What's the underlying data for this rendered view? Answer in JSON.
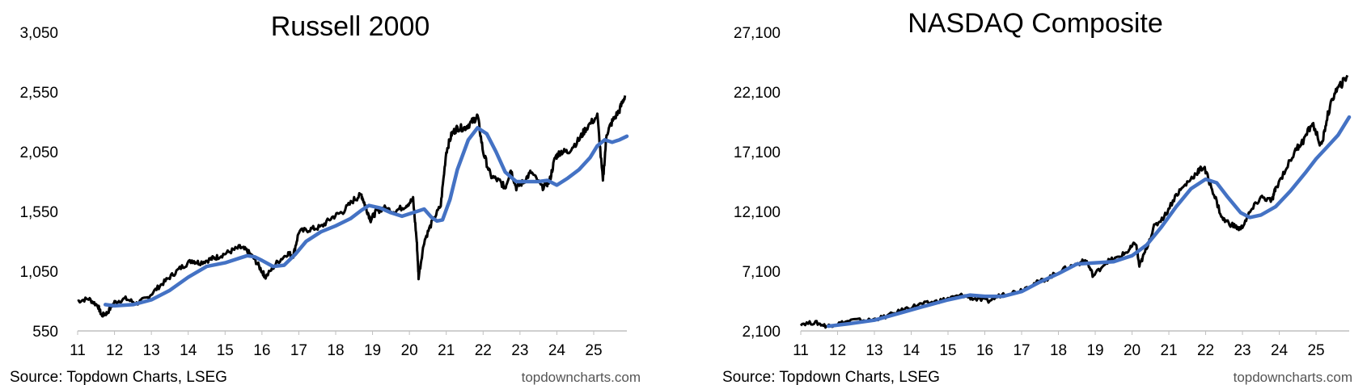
{
  "colors": {
    "price": "#000000",
    "moving_average": "#4472C4",
    "axis": "#bfbfbf"
  },
  "chart_data": [
    {
      "type": "line",
      "title": "Russell 2000",
      "x_tick_labels": [
        "11",
        "12",
        "13",
        "14",
        "15",
        "16",
        "17",
        "18",
        "19",
        "20",
        "21",
        "22",
        "23",
        "24",
        "25"
      ],
      "y_tick_labels": [
        "550",
        "1,050",
        "1,550",
        "2,050",
        "2,550",
        "3,050"
      ],
      "ylim": [
        550,
        3050
      ],
      "xlim": [
        2011.0,
        2025.9
      ],
      "source": "Source: Topdown Charts, LSEG",
      "watermark": "topdowncharts.com",
      "grid": false,
      "series": [
        {
          "role": "price",
          "x": [
            2011.0,
            2011.3,
            2011.55,
            2011.65,
            2011.8,
            2012.0,
            2012.3,
            2012.6,
            2012.9,
            2013.2,
            2013.5,
            2013.8,
            2014.1,
            2014.3,
            2014.6,
            2014.8,
            2015.1,
            2015.4,
            2015.6,
            2015.8,
            2016.0,
            2016.1,
            2016.4,
            2016.7,
            2016.85,
            2017.0,
            2017.3,
            2017.6,
            2017.9,
            2018.2,
            2018.5,
            2018.7,
            2018.8,
            2018.95,
            2019.1,
            2019.3,
            2019.6,
            2019.9,
            2020.1,
            2020.2,
            2020.25,
            2020.4,
            2020.6,
            2020.85,
            2021.0,
            2021.15,
            2021.3,
            2021.5,
            2021.7,
            2021.85,
            2022.0,
            2022.2,
            2022.45,
            2022.6,
            2022.75,
            2022.9,
            2023.1,
            2023.3,
            2023.6,
            2023.8,
            2023.95,
            2024.1,
            2024.3,
            2024.6,
            2024.8,
            2025.1,
            2025.25,
            2025.35,
            2025.5,
            2025.7,
            2025.85
          ],
          "y": [
            800,
            820,
            760,
            680,
            700,
            790,
            820,
            780,
            830,
            920,
            1000,
            1080,
            1140,
            1120,
            1150,
            1170,
            1210,
            1250,
            1220,
            1150,
            1050,
            1000,
            1120,
            1200,
            1180,
            1380,
            1400,
            1420,
            1500,
            1550,
            1650,
            1690,
            1600,
            1480,
            1550,
            1580,
            1550,
            1600,
            1650,
            1300,
            1000,
            1300,
            1450,
            1600,
            2050,
            2200,
            2250,
            2250,
            2300,
            2350,
            2050,
            1850,
            1800,
            1750,
            1900,
            1750,
            1800,
            1880,
            1750,
            1800,
            2000,
            2050,
            2050,
            2150,
            2250,
            2350,
            1800,
            2200,
            2300,
            2400,
            2520
          ]
        },
        {
          "role": "moving_average",
          "x": [
            2011.75,
            2012.0,
            2012.5,
            2013.0,
            2013.5,
            2014.0,
            2014.5,
            2015.0,
            2015.4,
            2015.6,
            2015.8,
            2016.0,
            2016.3,
            2016.6,
            2016.9,
            2017.2,
            2017.6,
            2018.0,
            2018.4,
            2018.7,
            2018.9,
            2019.2,
            2019.5,
            2019.8,
            2020.1,
            2020.4,
            2020.6,
            2020.75,
            2020.9,
            2021.1,
            2021.3,
            2021.6,
            2021.85,
            2022.1,
            2022.35,
            2022.6,
            2022.9,
            2023.2,
            2023.5,
            2023.75,
            2024.0,
            2024.3,
            2024.6,
            2024.9,
            2025.1,
            2025.3,
            2025.5,
            2025.7,
            2025.9
          ],
          "y": [
            770,
            760,
            770,
            810,
            890,
            1000,
            1090,
            1120,
            1160,
            1180,
            1170,
            1140,
            1090,
            1100,
            1190,
            1300,
            1380,
            1430,
            1490,
            1560,
            1600,
            1580,
            1540,
            1510,
            1540,
            1570,
            1500,
            1470,
            1480,
            1650,
            1900,
            2150,
            2250,
            2200,
            2050,
            1880,
            1800,
            1800,
            1800,
            1810,
            1770,
            1830,
            1900,
            2000,
            2100,
            2150,
            2130,
            2150,
            2180
          ]
        }
      ]
    },
    {
      "type": "line",
      "title": "NASDAQ Composite",
      "x_tick_labels": [
        "11",
        "12",
        "13",
        "14",
        "15",
        "16",
        "17",
        "18",
        "19",
        "20",
        "21",
        "22",
        "23",
        "24",
        "25"
      ],
      "y_tick_labels": [
        "2,100",
        "7,100",
        "12,100",
        "17,100",
        "22,100",
        "27,100"
      ],
      "ylim": [
        2100,
        27100
      ],
      "xlim": [
        2011.0,
        2025.9
      ],
      "source": "Source: Topdown Charts, LSEG",
      "watermark": "topdowncharts.com",
      "grid": false,
      "series": [
        {
          "role": "price",
          "x": [
            2011.0,
            2011.4,
            2011.7,
            2012.0,
            2012.4,
            2012.9,
            2013.3,
            2013.8,
            2014.2,
            2014.6,
            2015.0,
            2015.4,
            2015.7,
            2016.1,
            2016.5,
            2016.9,
            2017.3,
            2017.7,
            2018.1,
            2018.5,
            2018.75,
            2018.95,
            2019.3,
            2019.6,
            2019.9,
            2020.1,
            2020.2,
            2020.35,
            2020.6,
            2020.9,
            2021.2,
            2021.5,
            2021.8,
            2021.95,
            2022.2,
            2022.45,
            2022.7,
            2022.95,
            2023.2,
            2023.5,
            2023.8,
            2023.9,
            2024.2,
            2024.5,
            2024.65,
            2024.9,
            2025.15,
            2025.3,
            2025.5,
            2025.7,
            2025.85
          ],
          "y": [
            2700,
            2800,
            2500,
            2700,
            3000,
            3000,
            3300,
            3900,
            4300,
            4500,
            4800,
            5100,
            4800,
            4600,
            5200,
            5400,
            6000,
            6500,
            7200,
            7700,
            8000,
            6700,
            7900,
            8200,
            8800,
            9500,
            7500,
            8700,
            10800,
            11800,
            13500,
            14500,
            15500,
            15800,
            13800,
            11500,
            11000,
            10600,
            12000,
            13300,
            13000,
            14000,
            15800,
            17500,
            18000,
            19500,
            17500,
            20000,
            22000,
            22800,
            23500
          ]
        },
        {
          "role": "moving_average",
          "x": [
            2011.75,
            2012.3,
            2013.0,
            2013.7,
            2014.4,
            2015.0,
            2015.6,
            2016.0,
            2016.5,
            2017.0,
            2017.5,
            2018.0,
            2018.5,
            2019.0,
            2019.5,
            2020.0,
            2020.4,
            2020.8,
            2021.2,
            2021.6,
            2022.0,
            2022.3,
            2022.6,
            2022.95,
            2023.2,
            2023.5,
            2023.9,
            2024.3,
            2024.7,
            2025.0,
            2025.3,
            2025.6,
            2025.9
          ],
          "y": [
            2500,
            2700,
            3000,
            3600,
            4200,
            4700,
            5100,
            5000,
            5000,
            5400,
            6200,
            6900,
            7700,
            7800,
            7900,
            8400,
            9300,
            10800,
            12500,
            14000,
            14800,
            14500,
            13300,
            12000,
            11600,
            11800,
            12500,
            13800,
            15300,
            16500,
            17500,
            18500,
            20000
          ]
        }
      ]
    }
  ]
}
